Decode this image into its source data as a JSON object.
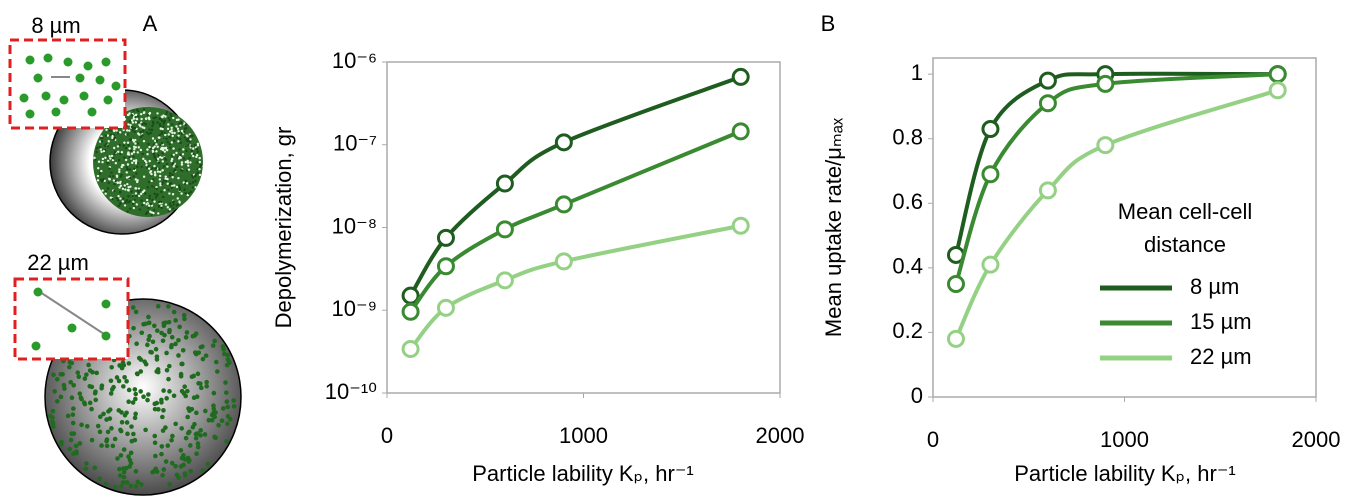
{
  "illustration": {
    "labels": [
      "8 µm",
      "22 µm"
    ]
  },
  "chart_data": [
    {
      "type": "line",
      "panel": "A",
      "y_label": "Depolymerization, gr",
      "x_label": "Particle lability Kₚ, hr⁻¹",
      "log_y": true,
      "xlim": [
        0,
        2000
      ],
      "xticks": [
        0,
        1000,
        2000
      ],
      "ylim": [
        1e-10,
        1e-06
      ],
      "yticks": [
        {
          "value": 1e-10,
          "label": "10⁻¹⁰"
        },
        {
          "value": 1e-09,
          "label": "10⁻⁹"
        },
        {
          "value": 1e-08,
          "label": "10⁻⁸"
        },
        {
          "value": 1e-07,
          "label": "10⁻⁷"
        },
        {
          "value": 1e-06,
          "label": "10⁻⁶"
        }
      ],
      "x": [
        120,
        300,
        600,
        900,
        1800
      ],
      "series": [
        {
          "color": "#1f5c1f",
          "values": [
            1.5e-09,
            7.5e-09,
            3.4e-08,
            1.07e-07,
            6.6e-07
          ]
        },
        {
          "color": "#3a8a32",
          "values": [
            9.6e-10,
            3.4e-09,
            9.5e-09,
            1.9e-08,
            1.45e-07
          ]
        },
        {
          "color": "#95d184",
          "values": [
            3.4e-10,
            1.07e-09,
            2.3e-09,
            3.9e-09,
            1.05e-08
          ]
        }
      ]
    },
    {
      "type": "line",
      "panel": "B",
      "y_label": "Mean uptake rate/μₘₐₓ",
      "x_label": "Particle lability Kₚ, hr⁻¹",
      "log_y": false,
      "xlim": [
        0,
        2000
      ],
      "xticks": [
        0,
        1000,
        2000
      ],
      "ylim": [
        0,
        1.05
      ],
      "yticks": [
        0,
        0.2,
        0.4,
        0.6,
        0.8,
        1
      ],
      "legend_title": "Mean cell-cell distance",
      "x": [
        120,
        300,
        600,
        900,
        1800
      ],
      "series": [
        {
          "name": "8 µm",
          "color": "#1f5c1f",
          "values": [
            0.44,
            0.83,
            0.98,
            1.0,
            1.0
          ]
        },
        {
          "name": "15 µm",
          "color": "#3a8a32",
          "values": [
            0.35,
            0.69,
            0.91,
            0.97,
            1.0
          ]
        },
        {
          "name": "22 µm",
          "color": "#95d184",
          "values": [
            0.18,
            0.41,
            0.64,
            0.78,
            0.95
          ]
        }
      ]
    }
  ]
}
